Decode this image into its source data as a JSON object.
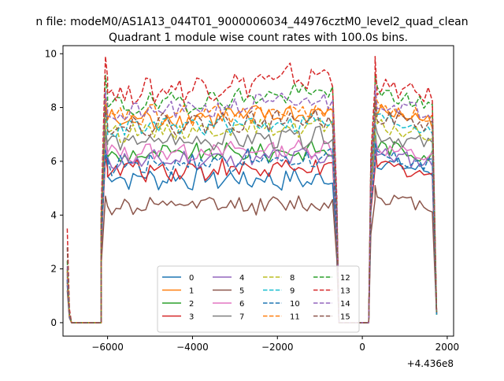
{
  "figure": {
    "suptitle": "n file: modeM0/AS1A13_044T01_9000006034_44976cztM0_level2_quad_clean",
    "title": "Quadrant 1 module wise count rates with 100.0s bins.",
    "offset_label": "+4.436e8"
  },
  "chart_data": {
    "type": "line",
    "title": "Quadrant 1 module wise count rates with 100.0s bins.",
    "xlabel": "",
    "ylabel": "",
    "x_offset": 443600000,
    "xlim": [
      -7050,
      2150
    ],
    "ylim": [
      -0.5,
      10.3
    ],
    "xticks": [
      -6000,
      -4000,
      -2000,
      0,
      2000
    ],
    "xtick_labels": [
      "−6000",
      "−4000",
      "−2000",
      "0",
      "2000"
    ],
    "yticks": [
      0,
      2,
      4,
      6,
      8,
      10
    ],
    "ytick_labels": [
      "0",
      "2",
      "4",
      "6",
      "8",
      "10"
    ],
    "grid": false,
    "legend": {
      "location": "lower center",
      "columns": 4
    },
    "x_pattern": {
      "description": "x in seconds relative to offset",
      "lead": [
        -6950,
        -6900,
        -6850
      ],
      "zero_start": -6850,
      "zero_end": -6150,
      "rise": -6150,
      "seg1_start": -6000,
      "seg1_end": -700,
      "step": 100,
      "drop": -600,
      "gap_zero_start": -550,
      "gap_zero_end": 150,
      "rise2": 200,
      "seg2_start": 350,
      "seg2_end": 1650,
      "tail": 1750
    },
    "series": [
      {
        "name": "0",
        "color": "#1f77b4",
        "style": "solid",
        "start": 1.4,
        "seg1_level": 5.4,
        "seg1_amp": 0.35,
        "seg1_trend": -0.1,
        "seg2_level": 6.0,
        "seg2_amp": 0.3,
        "peak1": 6.4,
        "peak2": 6.5,
        "end": 0.3
      },
      {
        "name": "1",
        "color": "#ff7f0e",
        "style": "solid",
        "start": 1.9,
        "seg1_level": 7.5,
        "seg1_amp": 0.35,
        "seg1_trend": 0.3,
        "seg2_level": 7.9,
        "seg2_amp": 0.3,
        "peak1": 8.3,
        "peak2": 8.5,
        "end": 0.4
      },
      {
        "name": "2",
        "color": "#2ca02c",
        "style": "solid",
        "start": 1.6,
        "seg1_level": 6.2,
        "seg1_amp": 0.3,
        "seg1_trend": 0.2,
        "seg2_level": 6.6,
        "seg2_amp": 0.3,
        "peak1": 6.9,
        "peak2": 7.1,
        "end": 0.3
      },
      {
        "name": "3",
        "color": "#d62728",
        "style": "solid",
        "start": 1.5,
        "seg1_level": 5.7,
        "seg1_amp": 0.35,
        "seg1_trend": 0.0,
        "seg2_level": 5.9,
        "seg2_amp": 0.3,
        "peak1": 6.2,
        "peak2": 6.4,
        "end": 0.3
      },
      {
        "name": "4",
        "color": "#9467bd",
        "style": "solid",
        "start": 1.6,
        "seg1_level": 6.0,
        "seg1_amp": 0.3,
        "seg1_trend": 0.2,
        "seg2_level": 6.3,
        "seg2_amp": 0.3,
        "peak1": 6.5,
        "peak2": 6.7,
        "end": 0.3
      },
      {
        "name": "5",
        "color": "#8c564b",
        "style": "solid",
        "start": 1.2,
        "seg1_level": 4.3,
        "seg1_amp": 0.3,
        "seg1_trend": 0.1,
        "seg2_level": 4.7,
        "seg2_amp": 0.25,
        "peak1": 4.7,
        "peak2": 5.1,
        "end": 0.3
      },
      {
        "name": "6",
        "color": "#e377c2",
        "style": "solid",
        "start": 1.7,
        "seg1_level": 6.3,
        "seg1_amp": 0.3,
        "seg1_trend": 0.2,
        "seg2_level": 6.5,
        "seg2_amp": 0.3,
        "peak1": 6.8,
        "peak2": 6.9,
        "end": 0.3
      },
      {
        "name": "7",
        "color": "#7f7f7f",
        "style": "solid",
        "start": 1.8,
        "seg1_level": 6.7,
        "seg1_amp": 0.3,
        "seg1_trend": 0.2,
        "seg2_level": 7.0,
        "seg2_amp": 0.3,
        "peak1": 7.2,
        "peak2": 7.4,
        "end": 0.3
      },
      {
        "name": "8",
        "color": "#bcbd22",
        "style": "dashed",
        "start": 1.9,
        "seg1_level": 7.1,
        "seg1_amp": 0.3,
        "seg1_trend": 0.2,
        "seg2_level": 7.3,
        "seg2_amp": 0.3,
        "peak1": 7.6,
        "peak2": 7.8,
        "end": 0.3
      },
      {
        "name": "9",
        "color": "#17becf",
        "style": "dashed",
        "start": 2.0,
        "seg1_level": 7.2,
        "seg1_amp": 0.3,
        "seg1_trend": 0.3,
        "seg2_level": 7.6,
        "seg2_amp": 0.3,
        "peak1": 7.9,
        "peak2": 8.1,
        "end": 0.3
      },
      {
        "name": "10",
        "color": "#1f77b4",
        "style": "dashed",
        "start": 1.6,
        "seg1_level": 5.9,
        "seg1_amp": 0.35,
        "seg1_trend": 0.2,
        "seg2_level": 6.2,
        "seg2_amp": 0.3,
        "peak1": 6.4,
        "peak2": 6.7,
        "end": 0.3
      },
      {
        "name": "11",
        "color": "#ff7f0e",
        "style": "dashed",
        "start": 2.0,
        "seg1_level": 7.6,
        "seg1_amp": 0.35,
        "seg1_trend": 0.3,
        "seg2_level": 8.0,
        "seg2_amp": 0.3,
        "peak1": 8.4,
        "peak2": 8.6,
        "end": 0.4
      },
      {
        "name": "12",
        "color": "#2ca02c",
        "style": "dashed",
        "start": 2.3,
        "seg1_level": 8.0,
        "seg1_amp": 0.35,
        "seg1_trend": 0.6,
        "seg2_level": 8.5,
        "seg2_amp": 0.3,
        "peak1": 9.2,
        "peak2": 9.3,
        "end": 0.4
      },
      {
        "name": "13",
        "color": "#d62728",
        "style": "dashed",
        "start": 3.5,
        "seg1_level": 8.5,
        "seg1_amp": 0.45,
        "seg1_trend": 0.7,
        "seg2_level": 8.8,
        "seg2_amp": 0.35,
        "peak1": 9.9,
        "peak2": 9.9,
        "end": 0.4
      },
      {
        "name": "14",
        "color": "#9467bd",
        "style": "dashed",
        "start": 2.1,
        "seg1_level": 7.7,
        "seg1_amp": 0.35,
        "seg1_trend": 0.6,
        "seg2_level": 8.2,
        "seg2_amp": 0.3,
        "peak1": 8.6,
        "peak2": 8.8,
        "end": 0.4
      },
      {
        "name": "15",
        "color": "#8c564b",
        "style": "dashed",
        "start": 2.8,
        "seg1_level": 7.3,
        "seg1_amp": 0.3,
        "seg1_trend": 0.3,
        "seg2_level": 7.7,
        "seg2_amp": 0.3,
        "peak1": 8.0,
        "peak2": 8.3,
        "end": 0.4
      }
    ]
  }
}
